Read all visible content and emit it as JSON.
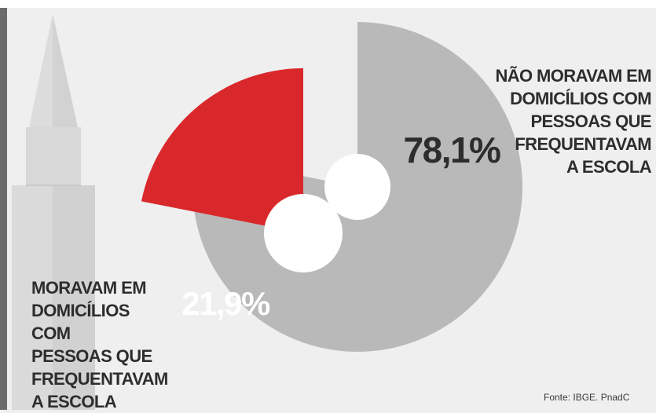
{
  "chart_data": {
    "type": "pie",
    "slices": [
      {
        "label": "NÃO MORAVAM EM DOMICÍLIOS COM PESSOAS QUE FREQUENTAVAM A ESCOLA",
        "value": 78.1,
        "value_label": "78,1%",
        "color": "#b9b9b9"
      },
      {
        "label": "MORAVAM EM DOMICÍLIOS COM PESSOAS QUE FREQUENTAVAM A ESCOLA",
        "value": 21.9,
        "value_label": "21,9%",
        "color": "#d9282b"
      }
    ]
  },
  "labels": {
    "right": [
      "NÃO MORAVAM EM",
      "DOMICÍLIOS COM",
      "PESSOAS QUE",
      "FREQUENTAVAM",
      "A ESCOLA"
    ],
    "left": [
      "MORAVAM EM",
      "DOMICÍLIOS COM",
      "PESSOAS QUE",
      "FREQUENTAVAM",
      "A ESCOLA"
    ]
  },
  "source": "Fonte: IBGE. PnadC",
  "colors": {
    "background": "#efefef",
    "gray_slice": "#b9b9b9",
    "red_slice": "#d9282b",
    "hole": "#ffffff"
  }
}
